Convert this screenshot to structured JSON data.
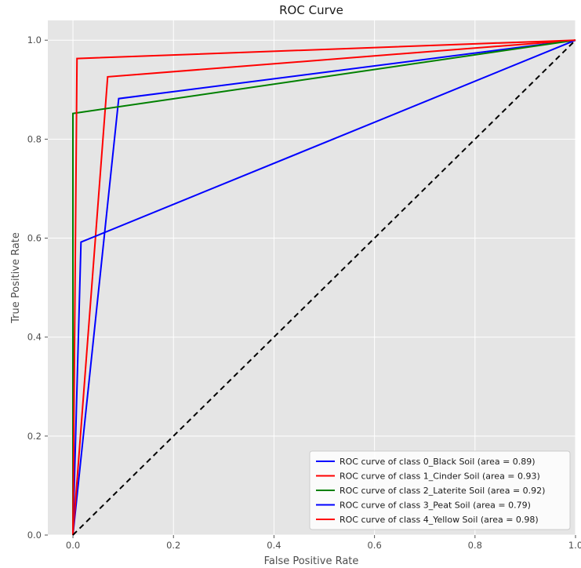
{
  "chart_data": {
    "type": "line",
    "title": "ROC Curve",
    "xlabel": "False Positive Rate",
    "ylabel": "True Positive Rate",
    "xlim": [
      -0.05,
      1.0
    ],
    "ylim": [
      0.0,
      1.04
    ],
    "xticks": [
      "0.0",
      "0.2",
      "0.4",
      "0.6",
      "0.8",
      "1.0"
    ],
    "yticks": [
      "0.0",
      "0.2",
      "0.4",
      "0.6",
      "0.8",
      "1.0"
    ],
    "grid": true,
    "legend_position": "lower-right",
    "background": "#e5e5e5",
    "grid_color": "#ffffff",
    "series": [
      {
        "name": "ROC curve of class 0_Black Soil (area = 0.89)",
        "color": "#0000ff",
        "x": [
          0.0,
          0.091,
          1.0
        ],
        "y": [
          0.0,
          0.882,
          1.0
        ]
      },
      {
        "name": "ROC curve of class 1_Cinder Soil (area = 0.93)",
        "color": "#ff0000",
        "x": [
          0.0,
          0.069,
          1.0
        ],
        "y": [
          0.0,
          0.926,
          1.0
        ]
      },
      {
        "name": "ROC curve of class 2_Laterite Soil (area = 0.92)",
        "color": "#008000",
        "x": [
          0.0,
          0.0,
          1.0
        ],
        "y": [
          0.0,
          0.852,
          1.0
        ]
      },
      {
        "name": "ROC curve of class 3_Peat Soil (area = 0.79)",
        "color": "#0000ff",
        "x": [
          0.0,
          0.016,
          1.0
        ],
        "y": [
          0.0,
          0.592,
          1.0
        ]
      },
      {
        "name": "ROC curve of class 4_Yellow Soil (area = 0.98)",
        "color": "#ff0000",
        "x": [
          0.0,
          0.008,
          1.0
        ],
        "y": [
          0.0,
          0.963,
          1.0
        ]
      }
    ],
    "reference_line": {
      "style": "dashed",
      "color": "#000000",
      "x": [
        0.0,
        1.0
      ],
      "y": [
        0.0,
        1.0
      ]
    }
  }
}
